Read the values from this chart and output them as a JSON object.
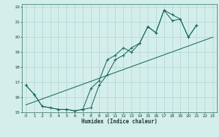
{
  "xlabel": "Humidex (Indice chaleur)",
  "bg_color": "#d4eeeb",
  "grid_color": "#aed4cf",
  "line_color": "#1a6b5a",
  "xlim": [
    -0.5,
    23.5
  ],
  "ylim": [
    15,
    22.2
  ],
  "xticks": [
    0,
    1,
    2,
    3,
    4,
    5,
    6,
    7,
    8,
    9,
    10,
    11,
    12,
    13,
    14,
    15,
    16,
    17,
    18,
    19,
    20,
    21,
    22,
    23
  ],
  "yticks": [
    15,
    16,
    17,
    18,
    19,
    20,
    21,
    22
  ],
  "line1_x": [
    0,
    1,
    2,
    3,
    4,
    5,
    6,
    7,
    8,
    9,
    10,
    11,
    12,
    13,
    14,
    15,
    16,
    17,
    18,
    19,
    20,
    21
  ],
  "line1_y": [
    16.8,
    16.2,
    15.4,
    15.3,
    15.2,
    15.2,
    15.1,
    15.2,
    15.3,
    16.8,
    17.5,
    18.5,
    18.8,
    19.3,
    19.6,
    20.7,
    20.3,
    21.8,
    21.1,
    21.2,
    20.0,
    20.8
  ],
  "line2_x": [
    0,
    1,
    2,
    3,
    4,
    5,
    6,
    7,
    8,
    9,
    10,
    11,
    12,
    13,
    14,
    15,
    16,
    17,
    18,
    19,
    20,
    21
  ],
  "line2_y": [
    16.8,
    16.2,
    15.4,
    15.3,
    15.2,
    15.2,
    15.1,
    15.2,
    16.6,
    17.1,
    18.5,
    18.8,
    19.3,
    19.0,
    19.6,
    20.7,
    20.3,
    21.8,
    21.5,
    21.2,
    20.0,
    20.8
  ],
  "line3_x": [
    0,
    23
  ],
  "line3_y": [
    15.5,
    20.0
  ]
}
